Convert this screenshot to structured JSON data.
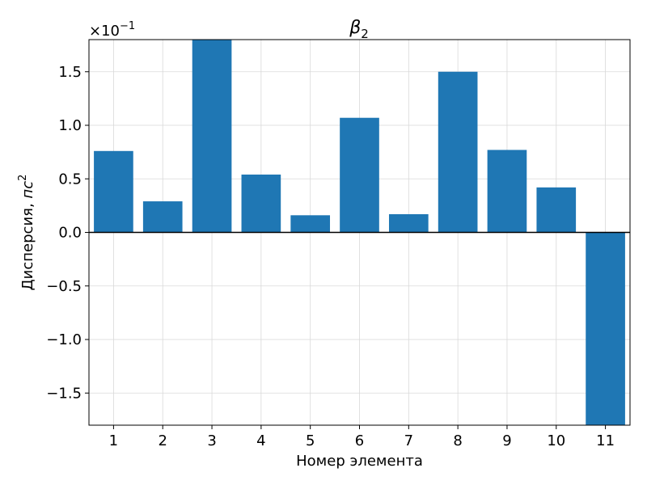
{
  "chart_data": {
    "type": "bar",
    "title": "β",
    "title_subscript": "2",
    "xlabel": "Номер элемента",
    "ylabel": "Дисперсия, ",
    "ylabel_unit": "пс",
    "ylabel_unit_power": "2",
    "offset_text": "×10",
    "offset_power": "−1",
    "categories": [
      "1",
      "2",
      "3",
      "4",
      "5",
      "6",
      "7",
      "8",
      "9",
      "10",
      "11"
    ],
    "values": [
      0.76,
      0.29,
      1.81,
      0.54,
      0.16,
      1.07,
      0.17,
      1.5,
      0.77,
      0.42,
      -1.82
    ],
    "ylim": [
      -1.8,
      1.8
    ],
    "yticks": [
      -1.5,
      -1.0,
      -0.5,
      0.0,
      0.5,
      1.0,
      1.5
    ],
    "ytick_labels": [
      "−1.5",
      "−1.0",
      "−0.5",
      "0.0",
      "0.5",
      "1.0",
      "1.5"
    ],
    "bar_color": "#1f77b4",
    "grid": true
  }
}
